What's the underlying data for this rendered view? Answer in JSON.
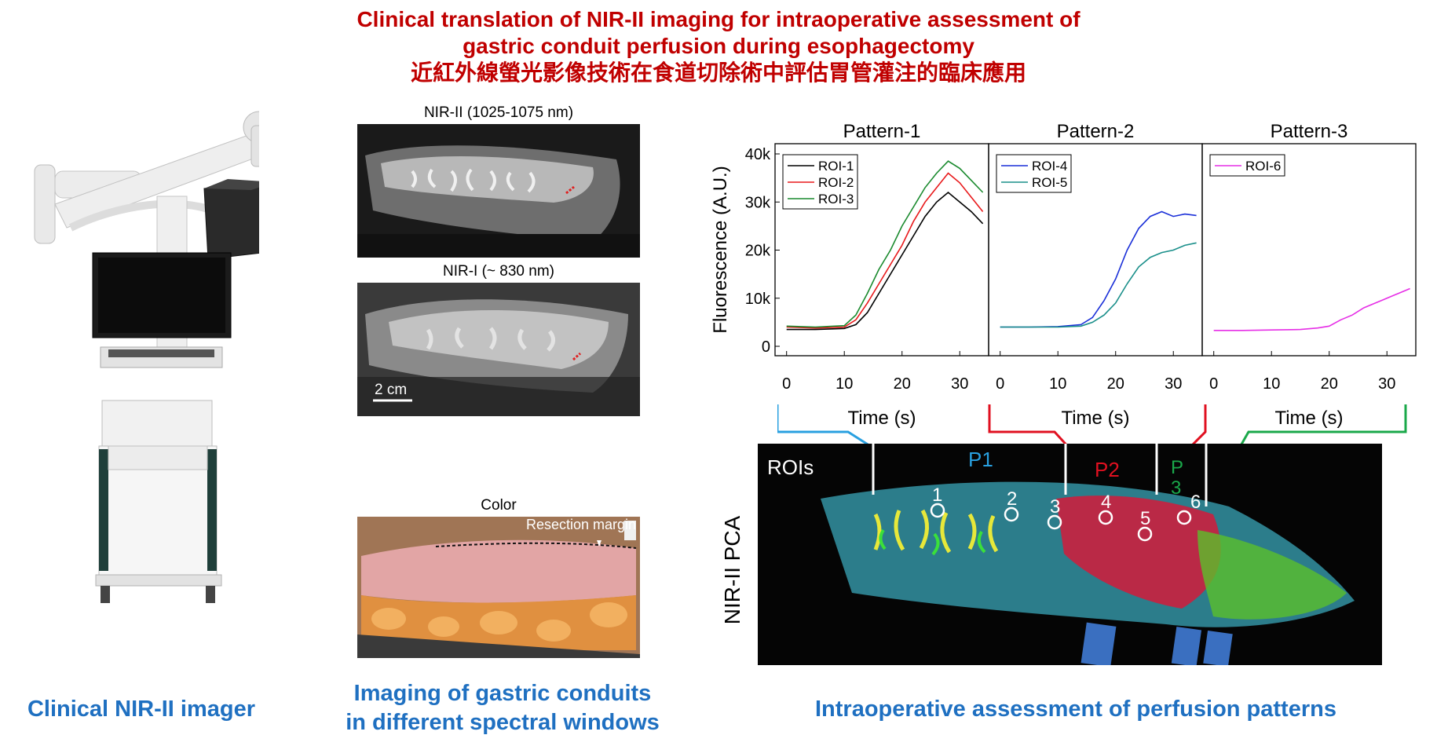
{
  "title": {
    "line1": "Clinical translation of NIR-II imaging for intraoperative assessment of",
    "line2": "gastric conduit perfusion during esophagectomy",
    "line3": "近紅外線螢光影像技術在食道切除術中評估胃管灌注的臨床應用"
  },
  "captions": {
    "imager": "Clinical NIR-II imager",
    "windows_line1": "Imaging of gastric conduits",
    "windows_line2": "in different spectral windows",
    "assessment": "Intraoperative assessment of perfusion patterns"
  },
  "spectral_images": {
    "nir2_label": "NIR-II (1025-1075 nm)",
    "nir1_label": "NIR-I (~ 830 nm)",
    "scale_bar": "2 cm",
    "color_label": "Color",
    "resection_label": "Resection margin"
  },
  "pca_image": {
    "side_label": "NIR-II PCA",
    "rois_label": "ROIs",
    "p1": "P1",
    "p2": "P2",
    "p3_top": "P",
    "p3_bottom": "3",
    "roi_numbers": [
      "1",
      "2",
      "3",
      "4",
      "5",
      "6"
    ]
  },
  "chart_data": [
    {
      "type": "line",
      "title": "Pattern-1",
      "xlabel": "Time (s)",
      "ylabel": "Fluorescence (A.U.)",
      "x_ticks": [
        "0",
        "10",
        "20",
        "30"
      ],
      "y_ticks": [
        "0",
        "10k",
        "20k",
        "30k",
        "40k"
      ],
      "xlim": [
        -2,
        35
      ],
      "ylim": [
        0,
        40000
      ],
      "series": [
        {
          "name": "ROI-1",
          "color": "#000000",
          "x": [
            0,
            5,
            10,
            12,
            14,
            16,
            18,
            20,
            22,
            24,
            26,
            28,
            30,
            32,
            34
          ],
          "y": [
            3500,
            3500,
            3700,
            4500,
            7000,
            11000,
            15000,
            19000,
            23000,
            27000,
            30000,
            32000,
            30000,
            28000,
            25500
          ]
        },
        {
          "name": "ROI-2",
          "color": "#e8191b",
          "x": [
            0,
            5,
            10,
            12,
            14,
            16,
            18,
            20,
            22,
            24,
            26,
            28,
            30,
            32,
            34
          ],
          "y": [
            4000,
            3800,
            4000,
            5500,
            9000,
            13000,
            17000,
            21000,
            26000,
            30000,
            33000,
            36000,
            34000,
            31000,
            28000
          ]
        },
        {
          "name": "ROI-3",
          "color": "#1a8a2e",
          "x": [
            0,
            5,
            10,
            12,
            14,
            16,
            18,
            20,
            22,
            24,
            26,
            28,
            30,
            32,
            34
          ],
          "y": [
            4200,
            4000,
            4300,
            6500,
            11000,
            16000,
            20000,
            25000,
            29000,
            33000,
            36000,
            38500,
            37000,
            34500,
            32000
          ]
        }
      ]
    },
    {
      "type": "line",
      "title": "Pattern-2",
      "xlabel": "Time (s)",
      "x_ticks": [
        "0",
        "10",
        "20",
        "30"
      ],
      "xlim": [
        -2,
        35
      ],
      "ylim": [
        0,
        40000
      ],
      "series": [
        {
          "name": "ROI-4",
          "color": "#1a2fd8",
          "x": [
            0,
            5,
            10,
            14,
            16,
            18,
            20,
            22,
            24,
            26,
            28,
            30,
            32,
            34
          ],
          "y": [
            4000,
            4000,
            4100,
            4500,
            6000,
            9500,
            14000,
            20000,
            24500,
            27000,
            28000,
            27000,
            27500,
            27200
          ]
        },
        {
          "name": "ROI-5",
          "color": "#1a8f8a",
          "x": [
            0,
            5,
            10,
            14,
            16,
            18,
            20,
            22,
            24,
            26,
            28,
            30,
            32,
            34
          ],
          "y": [
            4000,
            4000,
            4000,
            4200,
            5000,
            6500,
            9000,
            13000,
            16500,
            18500,
            19500,
            20000,
            21000,
            21500
          ]
        }
      ]
    },
    {
      "type": "line",
      "title": "Pattern-3",
      "xlabel": "Time (s)",
      "x_ticks": [
        "0",
        "10",
        "20",
        "30"
      ],
      "xlim": [
        -2,
        35
      ],
      "ylim": [
        0,
        40000
      ],
      "series": [
        {
          "name": "ROI-6",
          "color": "#e62ee6",
          "x": [
            0,
            5,
            10,
            15,
            18,
            20,
            22,
            24,
            26,
            28,
            30,
            32,
            34
          ],
          "y": [
            3300,
            3300,
            3400,
            3500,
            3800,
            4200,
            5500,
            6500,
            8000,
            9000,
            10000,
            11000,
            12000
          ]
        }
      ]
    }
  ],
  "colors": {
    "title_red": "#c00000",
    "caption_blue": "#1f70c1",
    "p1_cyan": "#29a0e0",
    "p2_red": "#e01020",
    "p3_green": "#1aa84a"
  }
}
